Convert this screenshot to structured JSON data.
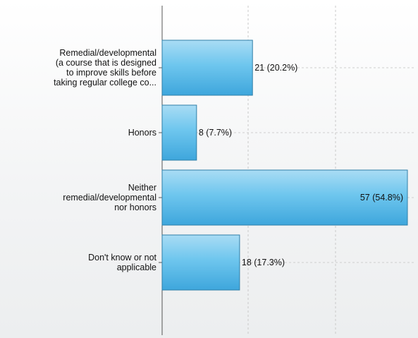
{
  "chart_data": {
    "type": "bar",
    "orientation": "horizontal",
    "categories": [
      [
        "Remedial/developmental",
        "(a course that is designed",
        "to improve skills before",
        "taking regular college co..."
      ],
      [
        "Honors"
      ],
      [
        "Neither",
        "remedial/developmental",
        "nor honors"
      ],
      [
        "Don't know or not",
        "applicable"
      ]
    ],
    "values": [
      21,
      8,
      57,
      18
    ],
    "value_labels": [
      "21 (20.2%)",
      "8 (7.7%)",
      "57 (54.8%)",
      "18 (17.3%)"
    ],
    "xlim": [
      0,
      57
    ],
    "grid": "vertical dashed",
    "bar_color": "#5bb8e6",
    "bar_edge": "#2f7fa8"
  }
}
